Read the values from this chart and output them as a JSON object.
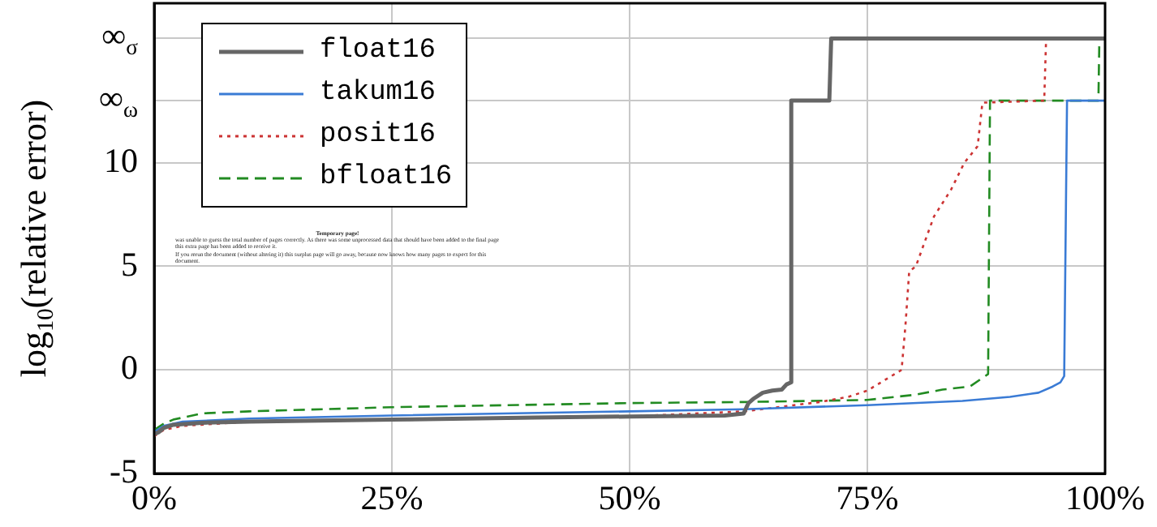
{
  "chart_data": {
    "type": "line",
    "ylabel": "log$_{10}$(relative error)",
    "xlim": [
      0,
      100
    ],
    "ylim": [
      -5,
      17.7
    ],
    "xticks": [
      {
        "value": 0,
        "label": "0%"
      },
      {
        "value": 25,
        "label": "25%"
      },
      {
        "value": 50,
        "label": "50%"
      },
      {
        "value": 75,
        "label": "75%"
      },
      {
        "value": 100,
        "label": "100%"
      }
    ],
    "yticks": [
      -5,
      0,
      5,
      10,
      {
        "value": 13,
        "label": "∞$_{ω}$"
      },
      {
        "value": 16,
        "label": "∞$_{σ}$"
      }
    ],
    "grid": true,
    "legend": "top left",
    "marker": "none",
    "annotations": [
      "Temporary page!",
      "was unable to guess the total number of pages correctly. As there was some unprocessed data that should have been added to the final page this extra page has been added to receive it.",
      "If you rerun the document (without altering it) this surplus page will go away, because now knows how many pages to expect for this document."
    ],
    "series": [
      {
        "name": "float16",
        "color": "#666666",
        "line_style": "solid",
        "x": [
          0,
          0.5,
          1,
          2,
          5,
          10,
          25,
          40,
          50,
          60,
          62,
          62.5,
          63,
          64,
          65,
          66,
          66.5,
          67,
          67,
          71,
          71.2,
          100
        ],
        "values": [
          -3.1,
          -3.0,
          -2.8,
          -2.65,
          -2.55,
          -2.5,
          -2.4,
          -2.3,
          -2.25,
          -2.2,
          -2.1,
          -1.6,
          -1.4,
          -1.1,
          -1.0,
          -0.95,
          -0.7,
          -0.6,
          13,
          13,
          16,
          16
        ]
      },
      {
        "name": "takum16",
        "color": "#3a7bd5",
        "line_style": "solid",
        "x": [
          0,
          1,
          3,
          10,
          25,
          50,
          62,
          75,
          85,
          90,
          93,
          94.5,
          95.3,
          95.7,
          96,
          100
        ],
        "values": [
          -3.0,
          -2.7,
          -2.5,
          -2.35,
          -2.2,
          -2.0,
          -1.9,
          -1.7,
          -1.5,
          -1.3,
          -1.1,
          -0.8,
          -0.6,
          -0.3,
          13,
          13
        ]
      },
      {
        "name": "posit16",
        "color": "#cc3333",
        "line_style": "dotted",
        "x": [
          0,
          1,
          3,
          10,
          25,
          50,
          62,
          70,
          73,
          75,
          78.6,
          79,
          79.4,
          80.1,
          82,
          83.8,
          85.2,
          86.6,
          87.1,
          93.6,
          93.8,
          100
        ],
        "values": [
          -3.2,
          -2.9,
          -2.7,
          -2.5,
          -2.4,
          -2.25,
          -2.0,
          -1.55,
          -1.3,
          -1.0,
          0,
          2.1,
          4.75,
          5.0,
          7.4,
          8.7,
          10,
          10.8,
          12.9,
          13,
          16,
          16
        ]
      },
      {
        "name": "bfloat16",
        "color": "#228b22",
        "line_style": "dashed",
        "x": [
          0,
          1,
          2,
          5,
          10,
          25,
          50,
          62,
          75,
          80,
          82.9,
          85.8,
          87.7,
          87.9,
          99.3,
          99.4,
          100
        ],
        "values": [
          -2.9,
          -2.6,
          -2.4,
          -2.1,
          -2.0,
          -1.8,
          -1.6,
          -1.55,
          -1.45,
          -1.2,
          -0.95,
          -0.8,
          -0.2,
          13,
          13,
          16,
          16
        ]
      }
    ]
  }
}
